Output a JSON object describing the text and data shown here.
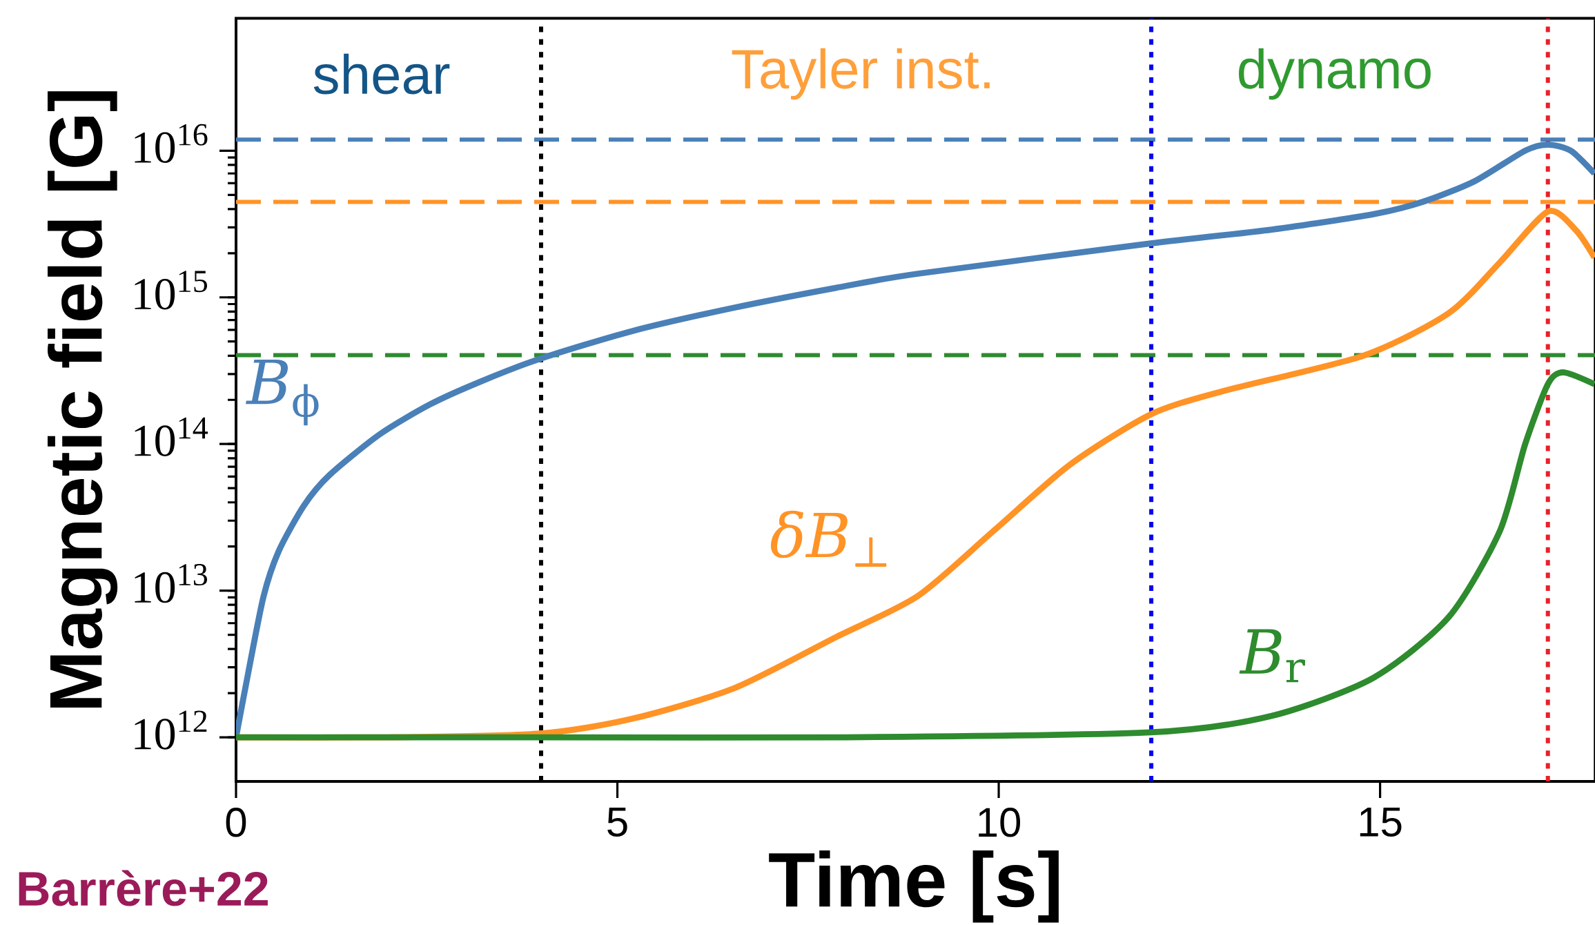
{
  "chart_data": {
    "type": "line",
    "xlabel": "Time [s]",
    "ylabel": "Magnetic field [G]",
    "log": "y",
    "xlim": [
      0,
      17.82
    ],
    "ylim": [
      500000000000.0,
      8e+16
    ],
    "xticks": [
      0,
      5,
      10,
      15
    ],
    "yticks": [
      {
        "value": 1000000000000.0,
        "label": "10$^{12}$"
      },
      {
        "value": 10000000000000.0,
        "label": "10$^{13}$"
      },
      {
        "value": 100000000000000.0,
        "label": "10$^{14}$"
      },
      {
        "value": 1000000000000000.0,
        "label": "10$^{15}$"
      },
      {
        "value": 1e+16,
        "label": "10$^{16}$"
      }
    ],
    "grid": false,
    "legend": false,
    "marker": "none",
    "line_style": "solid",
    "series": [
      {
        "name": "*B*$_{ϕ}$",
        "color": "#4a80b8",
        "x": [
          0,
          0.16,
          0.36,
          0.56,
          0.89,
          1.22,
          1.88,
          2.55,
          3.21,
          3.99,
          5.2,
          6.53,
          7.86,
          8.94,
          11.99,
          13.58,
          14.91,
          15.57,
          16.24,
          16.9,
          17.2,
          17.5,
          17.81
        ],
        "values": [
          1000000000000.0,
          2750000000000.0,
          9100000000000.0,
          18600000000000.0,
          38000000000000.0,
          61000000000000.0,
          116000000000000.0,
          187000000000000.0,
          267000000000000.0,
          382000000000000.0,
          590000000000000.0,
          850000000000000.0,
          1160000000000000.0,
          1450000000000000.0,
          2330000000000000.0,
          2900000000000000.0,
          3690000000000000.0,
          4500000000000000.0,
          6200000000000000.0,
          1e+16,
          1.1e+16,
          1e+16,
          7000000000000000.0
        ]
      },
      {
        "name": "*δB*$_{⊥}$",
        "color": "#ff9326",
        "x": [
          0,
          2,
          3.99,
          5.2,
          6.53,
          7.86,
          8.94,
          9.93,
          10.93,
          11.99,
          12.92,
          14.78,
          15.9,
          16.57,
          17.2,
          17.56,
          17.81
        ],
        "values": [
          1000000000000.0,
          1000000000000.0,
          1060000000000.0,
          1340000000000.0,
          2160000000000.0,
          4800000000000.0,
          9200000000000.0,
          25500000000000.0,
          72000000000000.0,
          159000000000000.0,
          228000000000000.0,
          400000000000000.0,
          780000000000000.0,
          1730000000000000.0,
          3850000000000000.0,
          2900000000000000.0,
          1870000000000000.0
        ]
      },
      {
        "name": "*B*$_{r}$",
        "color": "#2e8b2e",
        "x": [
          0,
          4,
          8,
          11.99,
          13.58,
          14.91,
          15.9,
          16.57,
          16.9,
          17.2,
          17.4,
          17.81
        ],
        "values": [
          1000000000000.0,
          1000000000000.0,
          1000000000000.0,
          1080000000000.0,
          1400000000000.0,
          2540000000000.0,
          6600000000000.0,
          25500000000000.0,
          99000000000000.0,
          256000000000000.0,
          308000000000000.0,
          256000000000000.0
        ]
      }
    ],
    "ref_lines": [
      {
        "axis": "y",
        "value": 1.19e+16,
        "color": "#4a80b8",
        "line_style": "dashed"
      },
      {
        "axis": "y",
        "value": 4470000000000000.0,
        "color": "#ff9326",
        "line_style": "dashed"
      },
      {
        "axis": "y",
        "value": 404000000000000.0,
        "color": "#2e8b2e",
        "line_style": "dashed"
      },
      {
        "axis": "x",
        "value": 4,
        "color": "#000000",
        "line_style": "dotted"
      },
      {
        "axis": "x",
        "value": 12,
        "color": "#0000ee",
        "line_style": "dotted"
      },
      {
        "axis": "x",
        "value": 17.2,
        "color": "#e8202a",
        "line_style": "dotted"
      }
    ],
    "annotations": [
      "shear",
      "Tayler inst.",
      "dynamo",
      "Barrère+22"
    ]
  }
}
